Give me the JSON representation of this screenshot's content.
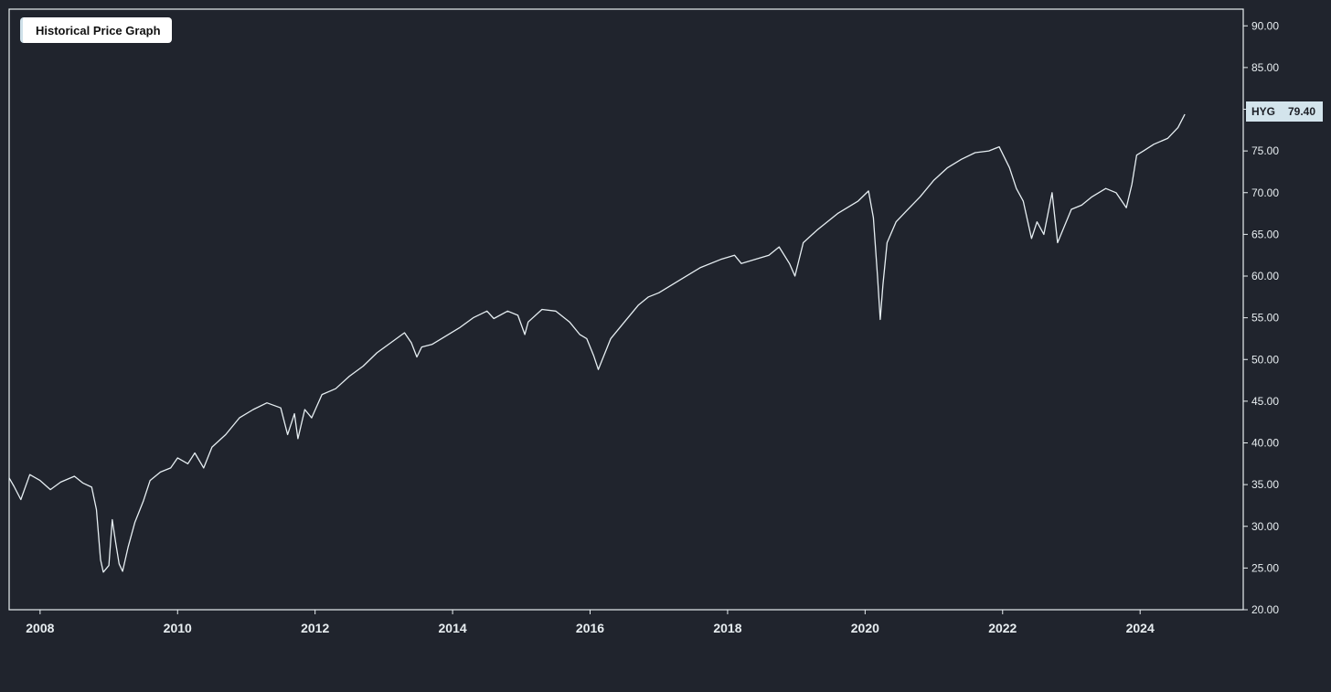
{
  "chart_data": {
    "type": "line",
    "title": "Historical Price Graph",
    "xlabel": "",
    "ylabel": "",
    "xlim": [
      2007.55,
      2025.5
    ],
    "ylim": [
      20,
      92
    ],
    "x_ticks": [
      "2008",
      "2010",
      "2012",
      "2014",
      "2016",
      "2018",
      "2020",
      "2022",
      "2024"
    ],
    "y_ticks": [
      "20.00",
      "25.00",
      "30.00",
      "35.00",
      "40.00",
      "45.00",
      "50.00",
      "55.00",
      "60.00",
      "65.00",
      "70.00",
      "75.00",
      "80.00",
      "85.00",
      "90.00"
    ],
    "grid": false,
    "series": [
      {
        "name": "HYG",
        "color": "#e6eef2",
        "x": [
          2007.55,
          2007.62,
          2007.72,
          2007.85,
          2008.0,
          2008.15,
          2008.3,
          2008.5,
          2008.62,
          2008.75,
          2008.82,
          2008.88,
          2008.92,
          2009.0,
          2009.05,
          2009.1,
          2009.15,
          2009.2,
          2009.28,
          2009.38,
          2009.5,
          2009.6,
          2009.75,
          2009.9,
          2010.0,
          2010.15,
          2010.25,
          2010.38,
          2010.5,
          2010.7,
          2010.9,
          2011.1,
          2011.3,
          2011.5,
          2011.6,
          2011.7,
          2011.75,
          2011.85,
          2011.95,
          2012.1,
          2012.3,
          2012.5,
          2012.7,
          2012.9,
          2013.1,
          2013.3,
          2013.4,
          2013.48,
          2013.55,
          2013.7,
          2013.9,
          2014.1,
          2014.3,
          2014.5,
          2014.6,
          2014.8,
          2014.95,
          2015.05,
          2015.1,
          2015.3,
          2015.5,
          2015.7,
          2015.85,
          2015.95,
          2016.05,
          2016.12,
          2016.3,
          2016.5,
          2016.7,
          2016.85,
          2017.0,
          2017.3,
          2017.6,
          2017.9,
          2018.1,
          2018.2,
          2018.4,
          2018.6,
          2018.75,
          2018.9,
          2018.98,
          2019.1,
          2019.3,
          2019.6,
          2019.9,
          2020.05,
          2020.12,
          2020.18,
          2020.22,
          2020.26,
          2020.32,
          2020.45,
          2020.6,
          2020.8,
          2021.0,
          2021.2,
          2021.4,
          2021.6,
          2021.8,
          2021.95,
          2022.1,
          2022.2,
          2022.3,
          2022.42,
          2022.5,
          2022.6,
          2022.72,
          2022.8,
          2023.0,
          2023.15,
          2023.3,
          2023.5,
          2023.65,
          2023.8,
          2023.88,
          2023.95,
          2024.05,
          2024.2,
          2024.4,
          2024.55,
          2024.65
        ],
        "y": [
          35.8,
          34.8,
          33.2,
          36.2,
          35.5,
          34.4,
          35.3,
          36.0,
          35.2,
          34.7,
          32.0,
          26.0,
          24.5,
          25.3,
          30.8,
          28.0,
          25.5,
          24.6,
          27.5,
          30.5,
          33.0,
          35.5,
          36.5,
          37.0,
          38.2,
          37.5,
          38.8,
          37.0,
          39.5,
          41.0,
          43.0,
          44.0,
          44.8,
          44.2,
          41.0,
          43.5,
          40.5,
          44.0,
          43.0,
          45.8,
          46.5,
          48.0,
          49.2,
          50.8,
          52.0,
          53.2,
          52.0,
          50.3,
          51.5,
          51.8,
          52.8,
          53.8,
          55.0,
          55.8,
          54.9,
          55.8,
          55.3,
          53.0,
          54.5,
          56.0,
          55.8,
          54.5,
          53.0,
          52.5,
          50.5,
          48.8,
          52.5,
          54.5,
          56.5,
          57.5,
          58.0,
          59.5,
          61.0,
          62.0,
          62.5,
          61.5,
          62.0,
          62.5,
          63.5,
          61.5,
          60.0,
          64.0,
          65.5,
          67.5,
          69.0,
          70.2,
          67.0,
          60.0,
          54.8,
          59.0,
          64.0,
          66.5,
          67.8,
          69.5,
          71.5,
          73.0,
          74.0,
          74.8,
          75.0,
          75.5,
          73.0,
          70.5,
          69.0,
          64.5,
          66.5,
          65.0,
          70.0,
          64.0,
          68.0,
          68.5,
          69.5,
          70.5,
          70.0,
          68.2,
          71.0,
          74.5,
          75.0,
          75.8,
          76.5,
          77.8,
          79.4
        ]
      }
    ],
    "last_value_tag": {
      "symbol": "HYG",
      "value": "79.40"
    }
  }
}
